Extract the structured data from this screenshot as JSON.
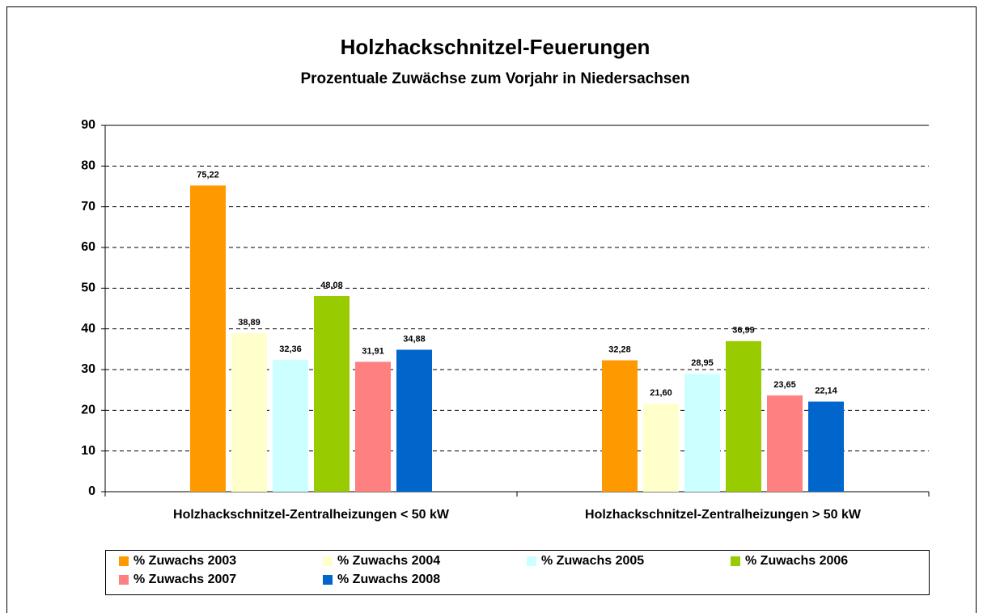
{
  "chart_data": {
    "type": "bar",
    "title": "Holzhackschnitzel-Feuerungen",
    "subtitle": "Prozentuale Zuwächse zum Vorjahr in Niedersachsen",
    "categories": [
      "Holzhackschnitzel-Zentralheizungen < 50 kW",
      "Holzhackschnitzel-Zentralheizungen > 50 kW"
    ],
    "series": [
      {
        "name": "% Zuwachs 2003",
        "color": "#ff9900",
        "values": [
          75.22,
          32.28
        ],
        "value_labels": [
          "75,22",
          "32,28"
        ]
      },
      {
        "name": "% Zuwachs 2004",
        "color": "#ffffcc",
        "values": [
          38.89,
          21.6
        ],
        "value_labels": [
          "38,89",
          "21,60"
        ]
      },
      {
        "name": "% Zuwachs 2005",
        "color": "#ccffff",
        "values": [
          32.36,
          28.95
        ],
        "value_labels": [
          "32,36",
          "28,95"
        ]
      },
      {
        "name": "% Zuwachs 2006",
        "color": "#99cc00",
        "values": [
          48.08,
          36.99
        ],
        "value_labels": [
          "48,08",
          "36,99"
        ]
      },
      {
        "name": "% Zuwachs 2007",
        "color": "#ff8080",
        "values": [
          31.91,
          23.65
        ],
        "value_labels": [
          "31,91",
          "23,65"
        ]
      },
      {
        "name": "% Zuwachs 2008",
        "color": "#0066cc",
        "values": [
          34.88,
          22.14
        ],
        "value_labels": [
          "34,88",
          "22,14"
        ]
      }
    ],
    "ylim": [
      0,
      90
    ],
    "yticks": [
      0,
      10,
      20,
      30,
      40,
      50,
      60,
      70,
      80,
      90
    ],
    "grid": true,
    "legend": "bottom"
  }
}
